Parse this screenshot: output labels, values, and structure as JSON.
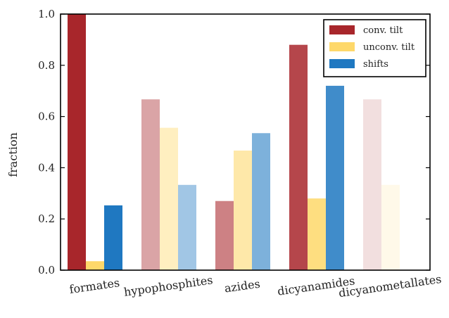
{
  "chart_data": {
    "type": "bar",
    "ylabel": "fraction",
    "xlabel": "",
    "title": "",
    "ylim": [
      0,
      1.0
    ],
    "yticks": [
      "0.0",
      "0.2",
      "0.4",
      "0.6",
      "0.8",
      "1.0"
    ],
    "grid": false,
    "legend_position": "top-right",
    "categories": [
      "formates",
      "hypophosphites",
      "azides",
      "dicyanamides",
      "dicyanometallates"
    ],
    "group_opacity": [
      1.0,
      0.42,
      0.58,
      0.85,
      0.15
    ],
    "series": [
      {
        "name": "conv. tilt",
        "color": "#a8262b",
        "values": [
          1.0,
          0.667,
          0.27,
          0.88,
          0.667
        ]
      },
      {
        "name": "unconv. tilt",
        "color": "#fed86a",
        "values": [
          0.035,
          0.556,
          0.467,
          0.28,
          0.333
        ]
      },
      {
        "name": "shifts",
        "color": "#1f78c1",
        "values": [
          0.253,
          0.333,
          0.535,
          0.72,
          0.0
        ]
      }
    ]
  }
}
